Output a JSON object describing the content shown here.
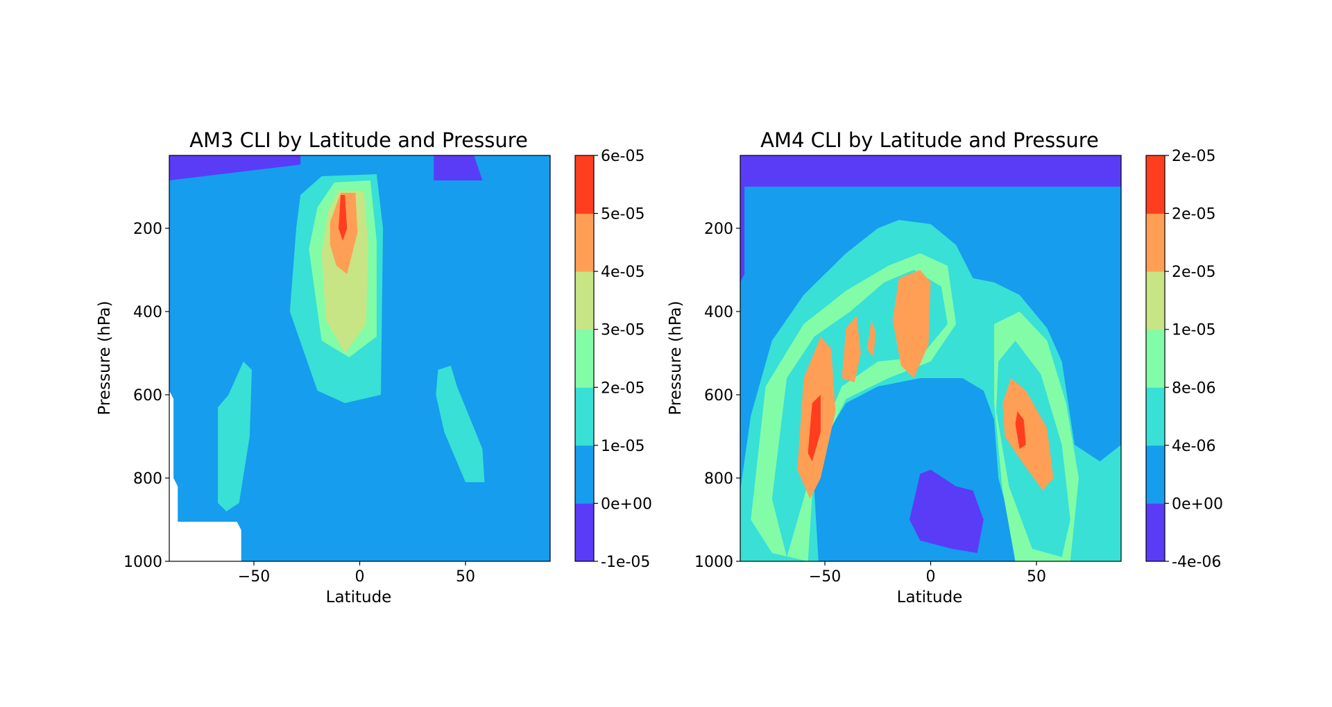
{
  "chart_data": [
    {
      "type": "contourf",
      "title": "AM3 CLI by Latitude and Pressure",
      "xlabel": "Latitude",
      "ylabel": "Pressure (hPa)",
      "xlim": [
        -90,
        90
      ],
      "ylim": [
        1000,
        25
      ],
      "y_inverted": true,
      "xticks": [
        -50,
        0,
        50
      ],
      "xtick_labels": [
        "−50",
        "0",
        "50"
      ],
      "yticks": [
        200,
        400,
        600,
        800,
        1000
      ],
      "ytick_labels": [
        "200",
        "400",
        "600",
        "800",
        "1000"
      ],
      "colormap": "rainbow",
      "colorbar": {
        "levels": [
          -1e-05,
          0,
          1e-05,
          2e-05,
          3e-05,
          4e-05,
          5e-05,
          6e-05
        ],
        "tick_labels": [
          "-1e-05",
          "0e+00",
          "1e-05",
          "2e-05",
          "3e-05",
          "4e-05",
          "5e-05",
          "6e-05"
        ],
        "colors": [
          "#5a3cf6",
          "#169ded",
          "#38e0d6",
          "#83fca8",
          "#c7e585",
          "#ff9f56",
          "#ff3e1f"
        ]
      },
      "background_color": "#169ded",
      "missing_region": {
        "lat": [
          -90,
          -56
        ],
        "pressure": [
          905,
          1000
        ],
        "note": "white (no data)"
      },
      "features": [
        {
          "name": "upper-boundary",
          "level": "-1e-05..0",
          "polygon": [
            [
              -90,
              25
            ],
            [
              -28,
              25
            ],
            [
              -28,
              47
            ],
            [
              -90,
              85
            ]
          ]
        },
        {
          "name": "upper-boundary-nh",
          "level": "-1e-05..0",
          "polygon": [
            [
              35,
              25
            ],
            [
              54,
              25
            ],
            [
              58,
              85
            ],
            [
              35,
              85
            ]
          ]
        },
        {
          "name": "tropical-plume",
          "level": "1e-05..2e-05",
          "polygon": [
            [
              -28,
              120
            ],
            [
              -18,
              75
            ],
            [
              8,
              70
            ],
            [
              11,
              200
            ],
            [
              10,
              600
            ],
            [
              -7,
              620
            ],
            [
              -20,
              590
            ],
            [
              -33,
              400
            ],
            [
              -30,
              200
            ]
          ]
        },
        {
          "name": "tropical-core-outer",
          "level": "2e-05..3e-05",
          "polygon": [
            [
              -20,
              150
            ],
            [
              -12,
              90
            ],
            [
              5,
              85
            ],
            [
              8,
              230
            ],
            [
              8,
              460
            ],
            [
              -5,
              510
            ],
            [
              -18,
              470
            ],
            [
              -24,
              250
            ]
          ]
        },
        {
          "name": "tropical-core-mid",
          "level": "3e-05..4e-05",
          "polygon": [
            [
              -15,
              160
            ],
            [
              -10,
              110
            ],
            [
              2,
              110
            ],
            [
              4,
              240
            ],
            [
              3,
              430
            ],
            [
              -7,
              500
            ],
            [
              -16,
              420
            ],
            [
              -18,
              260
            ]
          ]
        },
        {
          "name": "tropical-core-inner",
          "level": "4e-05..5e-05",
          "polygon": [
            [
              -14,
              185
            ],
            [
              -9,
              115
            ],
            [
              -2,
              115
            ],
            [
              -1,
              210
            ],
            [
              -6,
              310
            ],
            [
              -11,
              290
            ],
            [
              -14,
              240
            ]
          ]
        },
        {
          "name": "tropical-core-peak",
          "level": "5e-05..6e-05",
          "polygon": [
            [
              -10,
              200
            ],
            [
              -9,
              120
            ],
            [
              -7,
              120
            ],
            [
              -6,
              200
            ],
            [
              -8,
              230
            ]
          ]
        },
        {
          "name": "sh-lobe",
          "level": "1e-05..2e-05",
          "polygon": [
            [
              -67,
              860
            ],
            [
              -67,
              630
            ],
            [
              -62,
              600
            ],
            [
              -55,
              520
            ],
            [
              -51,
              540
            ],
            [
              -52,
              700
            ],
            [
              -57,
              860
            ],
            [
              -63,
              880
            ]
          ]
        },
        {
          "name": "nh-lobe",
          "level": "1e-05..2e-05",
          "polygon": [
            [
              36,
              600
            ],
            [
              37,
              540
            ],
            [
              43,
              530
            ],
            [
              46,
              580
            ],
            [
              58,
              730
            ],
            [
              59,
              810
            ],
            [
              50,
              810
            ],
            [
              40,
              690
            ]
          ]
        }
      ]
    },
    {
      "type": "contourf",
      "title": "AM4 CLI by Latitude and Pressure",
      "xlabel": "Latitude",
      "xlim": [
        -90,
        90
      ],
      "ylim": [
        1000,
        25
      ],
      "y_inverted": true,
      "xticks": [
        -50,
        0,
        50
      ],
      "xtick_labels": [
        "−50",
        "0",
        "50"
      ],
      "yticks": [
        200,
        400,
        600,
        800,
        1000
      ],
      "ytick_labels": [
        "200",
        "400",
        "600",
        "800",
        "1000"
      ],
      "colormap": "rainbow",
      "colorbar": {
        "levels": [
          -4e-06,
          0,
          4e-06,
          8e-06,
          1.2e-05,
          1.6e-05,
          2e-05,
          2.4e-05
        ],
        "tick_labels": [
          "-4e-06",
          "0e+00",
          "4e-06",
          "8e-06",
          "1e-05",
          "2e-05",
          "2e-05",
          "2e-05"
        ],
        "colors": [
          "#5a3cf6",
          "#169ded",
          "#38e0d6",
          "#83fca8",
          "#c7e585",
          "#ff9f56",
          "#ff3e1f"
        ]
      },
      "background_color": "#169ded",
      "features": [
        {
          "name": "upper-boundary",
          "level": "-4e-06..0",
          "polygon": [
            [
              -90,
              25
            ],
            [
              90,
              25
            ],
            [
              90,
              100
            ],
            [
              -90,
              100
            ]
          ]
        },
        {
          "name": "sh-strip",
          "level": "-4e-06..0",
          "polygon": [
            [
              -90,
              100
            ],
            [
              -88,
              100
            ],
            [
              -88,
              310
            ],
            [
              -90,
              330
            ]
          ]
        },
        {
          "name": "band-outer",
          "level": "4e-06..8e-06",
          "polygon": [
            [
              -90,
              830
            ],
            [
              -85,
              650
            ],
            [
              -75,
              470
            ],
            [
              -60,
              360
            ],
            [
              -40,
              260
            ],
            [
              -25,
              200
            ],
            [
              -15,
              180
            ],
            [
              0,
              190
            ],
            [
              12,
              240
            ],
            [
              20,
              320
            ],
            [
              30,
              330
            ],
            [
              42,
              360
            ],
            [
              55,
              440
            ],
            [
              62,
              520
            ],
            [
              68,
              720
            ],
            [
              80,
              760
            ],
            [
              90,
              720
            ],
            [
              90,
              1000
            ],
            [
              -90,
              1000
            ]
          ]
        },
        {
          "name": "band-inner-hole",
          "level": "0..4e-06",
          "polygon": [
            [
              -55,
              830
            ],
            [
              -50,
              700
            ],
            [
              -40,
              620
            ],
            [
              -25,
              580
            ],
            [
              -5,
              560
            ],
            [
              15,
              560
            ],
            [
              25,
              590
            ],
            [
              30,
              660
            ],
            [
              32,
              800
            ],
            [
              40,
              950
            ],
            [
              45,
              1000
            ],
            [
              -53,
              1000
            ]
          ]
        },
        {
          "name": "band-mid",
          "level": "8e-06..1e-05",
          "polygon": [
            [
              -85,
              900
            ],
            [
              -78,
              580
            ],
            [
              -60,
              430
            ],
            [
              -40,
              350
            ],
            [
              -20,
              290
            ],
            [
              -5,
              260
            ],
            [
              8,
              290
            ],
            [
              12,
              430
            ],
            [
              0,
              520
            ],
            [
              -20,
              560
            ],
            [
              -40,
              610
            ],
            [
              -55,
              760
            ],
            [
              -58,
              1000
            ],
            [
              -75,
              980
            ]
          ]
        },
        {
          "name": "nh-band-mid",
          "level": "8e-06..1e-05",
          "polygon": [
            [
              30,
              430
            ],
            [
              42,
              400
            ],
            [
              55,
              470
            ],
            [
              64,
              620
            ],
            [
              70,
              800
            ],
            [
              66,
              1000
            ],
            [
              40,
              1000
            ],
            [
              34,
              830
            ],
            [
              30,
              620
            ]
          ]
        },
        {
          "name": "sh-core-yellow",
          "level": "1e-05..2e-05",
          "polygon": [
            [
              -75,
              850
            ],
            [
              -68,
              560
            ],
            [
              -55,
              460
            ],
            [
              -38,
              400
            ],
            [
              -22,
              330
            ],
            [
              -8,
              300
            ],
            [
              5,
              340
            ],
            [
              8,
              430
            ],
            [
              -5,
              510
            ],
            [
              -25,
              520
            ],
            [
              -42,
              580
            ],
            [
              -52,
              700
            ],
            [
              -60,
              850
            ],
            [
              -68,
              990
            ]
          ]
        },
        {
          "name": "nh-core-yellow",
          "level": "1e-05..2e-05",
          "polygon": [
            [
              32,
              520
            ],
            [
              40,
              470
            ],
            [
              52,
              550
            ],
            [
              62,
              720
            ],
            [
              66,
              900
            ],
            [
              62,
              990
            ],
            [
              48,
              970
            ],
            [
              37,
              820
            ],
            [
              31,
              640
            ]
          ]
        },
        {
          "name": "sh-core-orange",
          "level": "2e-05..2e-05",
          "polygon": [
            [
              -63,
              780
            ],
            [
              -60,
              560
            ],
            [
              -52,
              460
            ],
            [
              -47,
              490
            ],
            [
              -45,
              640
            ],
            [
              -52,
              800
            ],
            [
              -57,
              850
            ]
          ]
        },
        {
          "name": "sh-small-orange",
          "level": "2e-05..2e-05",
          "polygon": [
            [
              -42,
              560
            ],
            [
              -40,
              440
            ],
            [
              -35,
              410
            ],
            [
              -33,
              500
            ],
            [
              -36,
              570
            ]
          ]
        },
        {
          "name": "sh-tiny-orange",
          "level": "2e-05..2e-05",
          "polygon": [
            [
              -30,
              490
            ],
            [
              -28,
              420
            ],
            [
              -26,
              450
            ],
            [
              -27,
              510
            ]
          ]
        },
        {
          "name": "tropical-orange",
          "level": "2e-05..2e-05",
          "polygon": [
            [
              -18,
              420
            ],
            [
              -15,
              320
            ],
            [
              -5,
              300
            ],
            [
              0,
              330
            ],
            [
              -1,
              480
            ],
            [
              -8,
              560
            ],
            [
              -14,
              530
            ]
          ]
        },
        {
          "name": "nh-core-orange",
          "level": "2e-05..2e-05",
          "polygon": [
            [
              34,
              620
            ],
            [
              38,
              560
            ],
            [
              45,
              590
            ],
            [
              55,
              680
            ],
            [
              58,
              800
            ],
            [
              53,
              830
            ],
            [
              43,
              760
            ],
            [
              35,
              700
            ]
          ]
        },
        {
          "name": "sh-peak-red",
          "level": "2e-05..2e-05",
          "polygon": [
            [
              -58,
              740
            ],
            [
              -56,
              620
            ],
            [
              -52,
              600
            ],
            [
              -52,
              690
            ],
            [
              -56,
              760
            ]
          ]
        },
        {
          "name": "nh-peak-red",
          "level": "2e-05..2e-05",
          "polygon": [
            [
              40,
              670
            ],
            [
              41,
              640
            ],
            [
              44,
              660
            ],
            [
              45,
              720
            ],
            [
              42,
              730
            ]
          ]
        },
        {
          "name": "surface-speckle",
          "level": "-4e-06..0",
          "polygon": [
            [
              -5,
              790
            ],
            [
              0,
              780
            ],
            [
              12,
              820
            ],
            [
              20,
              830
            ],
            [
              25,
              900
            ],
            [
              22,
              980
            ],
            [
              10,
              970
            ],
            [
              -5,
              950
            ],
            [
              -10,
              900
            ]
          ]
        }
      ]
    }
  ]
}
